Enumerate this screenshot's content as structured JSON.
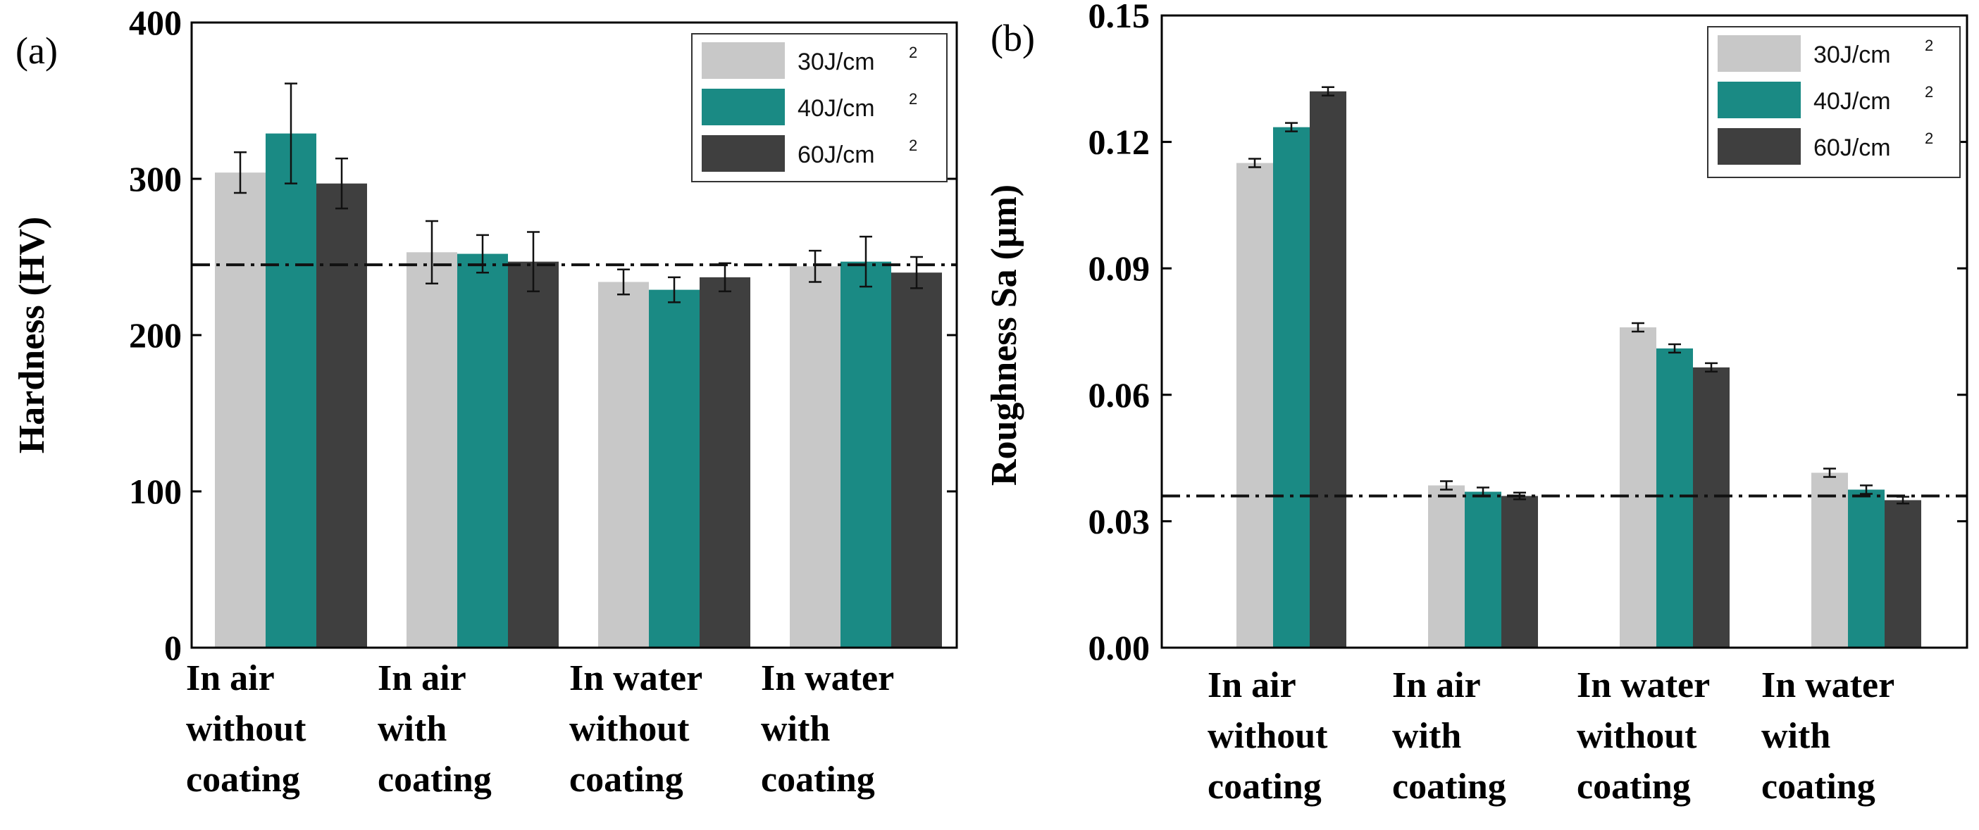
{
  "chart_data": [
    {
      "panel": "(a)",
      "type": "bar",
      "title": "",
      "xlabel": "",
      "ylabel": "Hardness (HV)",
      "ylim": [
        0,
        400
      ],
      "yticks": [
        "0",
        "100",
        "200",
        "300",
        "400"
      ],
      "ytick_values": [
        0,
        100,
        200,
        300,
        400
      ],
      "categories": [
        [
          "In air",
          "without",
          "coating"
        ],
        [
          "In air",
          "with",
          "coating"
        ],
        [
          "In water",
          "without",
          "coating"
        ],
        [
          "In water",
          "with",
          "coating"
        ]
      ],
      "series": [
        {
          "name": "30J/cm",
          "sup": "2",
          "color": "#c8c8c8",
          "values": [
            304,
            253,
            234,
            244
          ],
          "errors": [
            13,
            20,
            8,
            10
          ]
        },
        {
          "name": "40J/cm",
          "sup": "2",
          "color": "#1a8a84",
          "values": [
            329,
            252,
            229,
            247
          ],
          "errors": [
            32,
            12,
            8,
            16
          ]
        },
        {
          "name": "60J/cm",
          "sup": "2",
          "color": "#3f3f3f",
          "values": [
            297,
            247,
            237,
            240
          ],
          "errors": [
            16,
            19,
            9,
            10
          ]
        }
      ],
      "reference_line": 245,
      "legend_position": "top-right"
    },
    {
      "panel": "(b)",
      "type": "bar",
      "title": "",
      "xlabel": "",
      "ylabel": "Roughness Sa (μm)",
      "ylim": [
        0,
        0.15
      ],
      "yticks": [
        "0.00",
        "0.03",
        "0.06",
        "0.09",
        "0.12",
        "0.15"
      ],
      "ytick_values": [
        0,
        0.03,
        0.06,
        0.09,
        0.12,
        0.15
      ],
      "categories": [
        [
          "In air",
          "without",
          "coating"
        ],
        [
          "In air",
          "with",
          "coating"
        ],
        [
          "In water",
          "without",
          "coating"
        ],
        [
          "In water",
          "with",
          "coating"
        ]
      ],
      "series": [
        {
          "name": "30J/cm",
          "sup": "2",
          "color": "#c8c8c8",
          "values": [
            0.115,
            0.0385,
            0.076,
            0.0415
          ],
          "errors": [
            0.001,
            0.001,
            0.001,
            0.001
          ]
        },
        {
          "name": "40J/cm",
          "sup": "2",
          "color": "#1a8a84",
          "values": [
            0.1235,
            0.037,
            0.071,
            0.0375
          ],
          "errors": [
            0.001,
            0.001,
            0.001,
            0.001
          ]
        },
        {
          "name": "60J/cm",
          "sup": "2",
          "color": "#3f3f3f",
          "values": [
            0.132,
            0.036,
            0.0665,
            0.035
          ],
          "errors": [
            0.001,
            0.0008,
            0.001,
            0.0008
          ]
        }
      ],
      "reference_line": 0.036,
      "legend_position": "top-right"
    }
  ]
}
